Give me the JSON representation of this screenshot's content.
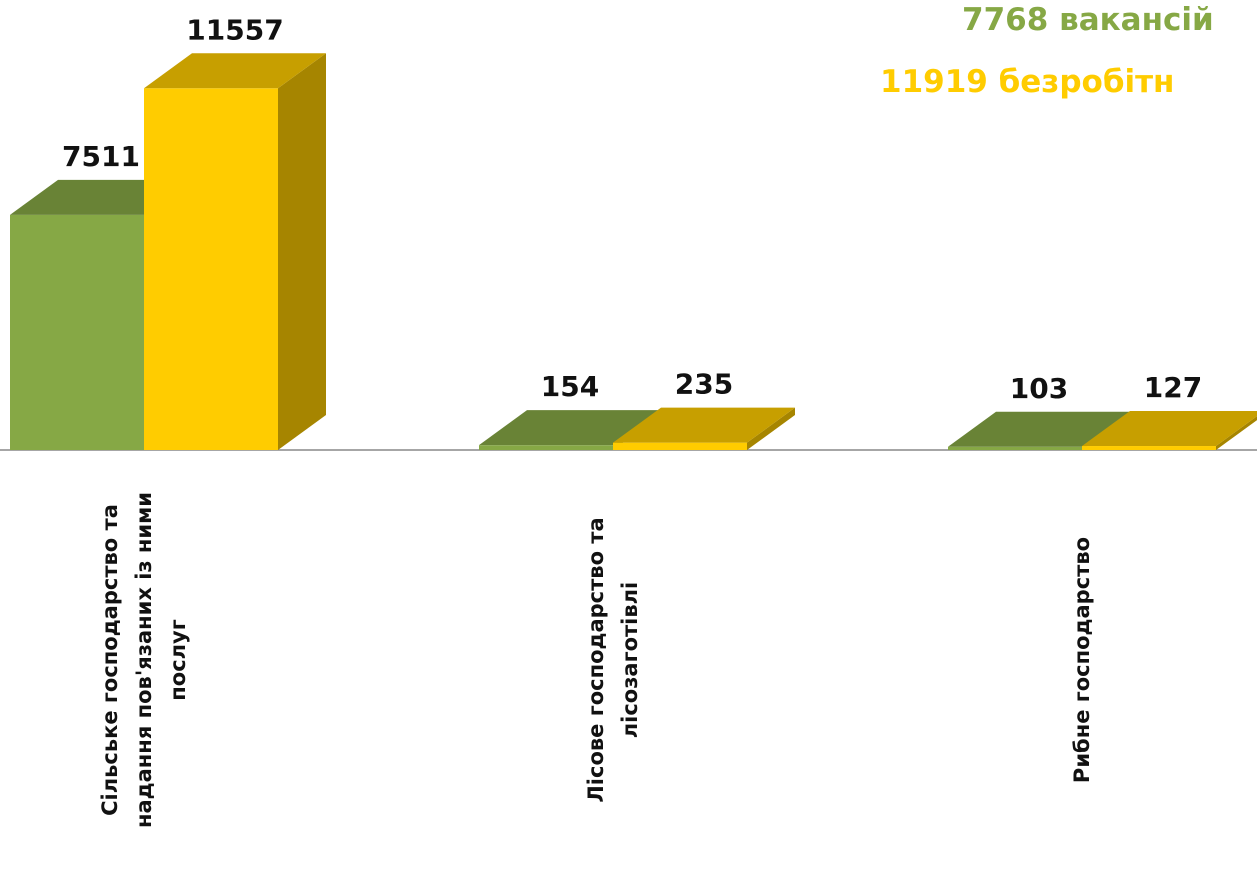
{
  "chart_data": {
    "type": "bar3d",
    "categories": [
      "Сільське господарство та\nнадання пов'язаних із ними\nпослуг",
      "Лісове господарство та\nлісозаготівлі",
      "Рибне господарство"
    ],
    "series": [
      {
        "name": "7768 вакансій",
        "color": "#86a845",
        "values": [
          7511,
          154,
          103
        ]
      },
      {
        "name": "11919 безробітн",
        "color": "#ffcc00",
        "values": [
          11557,
          235,
          127
        ]
      }
    ]
  }
}
